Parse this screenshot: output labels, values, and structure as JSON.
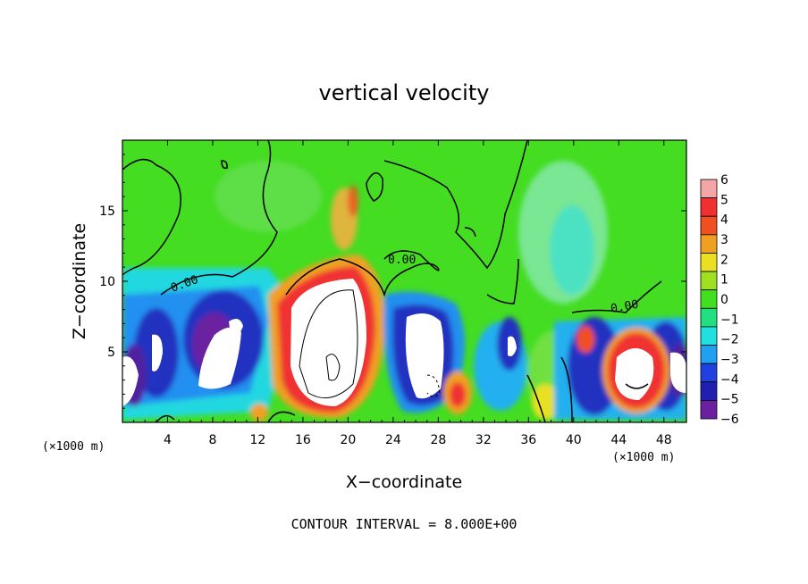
{
  "chart_data": {
    "type": "heatmap",
    "title": "vertical velocity",
    "xlabel": "X−coordinate",
    "ylabel": "Z−coordinate",
    "x_unit_left": "(×1000 m)",
    "x_unit_right": "(×1000 m)",
    "xlim": [
      0,
      50
    ],
    "ylim": [
      0,
      20
    ],
    "x_ticks": [
      4,
      8,
      12,
      16,
      20,
      24,
      28,
      32,
      36,
      40,
      44,
      48
    ],
    "y_ticks": [
      5,
      10,
      15
    ],
    "x_tick_labels": [
      "4",
      "8",
      "12",
      "16",
      "20",
      "24",
      "28",
      "32",
      "36",
      "40",
      "44",
      "48"
    ],
    "y_tick_labels": [
      "5",
      "10",
      "15"
    ],
    "colorbar": {
      "levels": [
        6,
        5,
        4,
        3,
        2,
        1,
        0,
        -1,
        -2,
        -3,
        -4,
        -5,
        -6
      ],
      "labels": [
        "6",
        "5",
        "4",
        "3",
        "2",
        "1",
        "0",
        "−1",
        "−2",
        "−3",
        "−4",
        "−5",
        "−6"
      ],
      "colors": [
        "#f4a6a6",
        "#f03030",
        "#f05020",
        "#f0a020",
        "#e8e020",
        "#a0e020",
        "#40e020",
        "#20e080",
        "#20e0e0",
        "#20a0f0",
        "#2040e0",
        "#2020b0",
        "#6a20a0"
      ]
    },
    "contour_labels": [
      "0.00",
      "0.00",
      "0.00"
    ],
    "background_color": "#44dd22",
    "footer": "CONTOUR INTERVAL = 8.000E+00"
  }
}
